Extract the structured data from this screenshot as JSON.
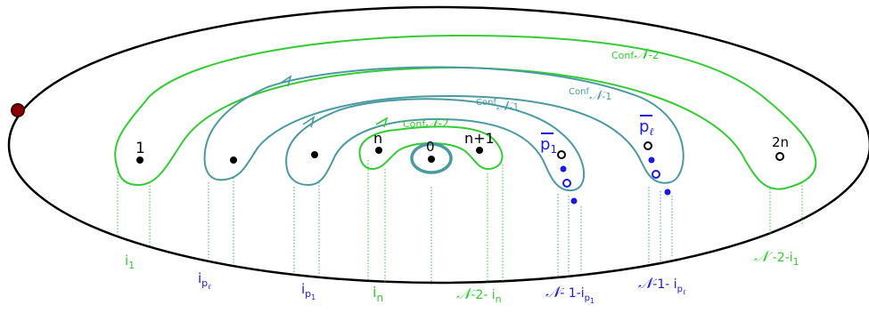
{
  "colors": {
    "black": "#000000",
    "green": "#33cc33",
    "teal": "#4a9aa0",
    "blue": "#1a1add",
    "dark_red": "#5a0000"
  },
  "punctures": {
    "one": "1",
    "n": "n",
    "zero": "0",
    "n_plus_1": "n+1",
    "p1": "p",
    "p1_sub": "1",
    "pl": "p",
    "pl_sub": "ℓ",
    "two_n": "2n"
  },
  "arcs": {
    "conf_n2_outer": {
      "word": "Conf",
      "sym": "𝒩",
      "suffix": "-2"
    },
    "conf_n1_outer": {
      "word": "Conf",
      "sym": "𝒩",
      "suffix": "-1"
    },
    "conf_n1_inner": {
      "word": "Conf",
      "sym": "𝒩",
      "suffix": "-1"
    },
    "conf_n2_inner": {
      "word": "Conf",
      "sym": "𝒩",
      "suffix": "-2"
    }
  },
  "bottom_labels": {
    "i1": {
      "base": "i",
      "sub": "1"
    },
    "ipl": {
      "base": "i",
      "sub": "p",
      "subsub": "ℓ"
    },
    "ip1": {
      "base": "i",
      "sub": "p",
      "subsub": "1"
    },
    "in": {
      "base": "i",
      "sub": "n"
    },
    "n2_in": {
      "sym": "𝒩",
      "text": "-2- i",
      "sub": "n"
    },
    "n1_ip1": {
      "sym": "𝒩",
      "text": "- 1-i",
      "sub": "p",
      "subsub": "1"
    },
    "n1_ipl": {
      "sym": "𝒩",
      "text": "-1- i",
      "sub": "p",
      "subsub": "ℓ"
    },
    "n2_i1": {
      "sym": "𝒩",
      "text": " -2-i",
      "sub": "1"
    }
  }
}
